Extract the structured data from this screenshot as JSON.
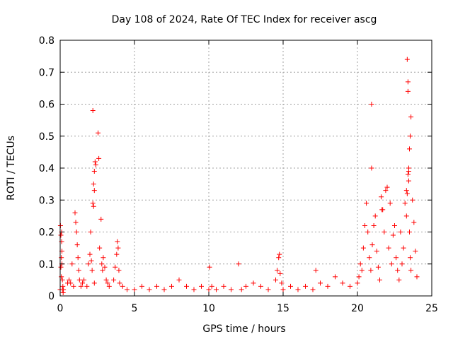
{
  "chart_data": {
    "type": "scatter",
    "title": "Day 108 of 2024, Rate Of TEC Index for receiver ascg",
    "xlabel": "GPS time / hours",
    "ylabel": "ROTI / TECUs",
    "xlim": [
      0,
      25
    ],
    "ylim": [
      0,
      0.8
    ],
    "x_ticks": [
      "0",
      "5",
      "10",
      "15",
      "20",
      "25"
    ],
    "y_ticks": [
      "0",
      "0.1",
      "0.2",
      "0.3",
      "0.4",
      "0.5",
      "0.6",
      "0.7",
      "0.8"
    ],
    "grid": true,
    "marker": "+",
    "color": "#ff0000",
    "series": [
      {
        "x": [
          0.0,
          0.02,
          0.05,
          0.08,
          0.1,
          0.12,
          0.15,
          0.18,
          0.2,
          0.22,
          0.05,
          0.1,
          0.15,
          0.08,
          0.12,
          0.5,
          0.6,
          0.7,
          0.8,
          0.9,
          1.0,
          1.05,
          1.1,
          1.15,
          1.2,
          1.25,
          1.3,
          1.4,
          1.5,
          1.6,
          1.8,
          1.9,
          2.0,
          2.05,
          2.1,
          2.15,
          2.2,
          2.25,
          2.3,
          2.35,
          2.4,
          2.2,
          2.25,
          2.3,
          2.3,
          2.55,
          2.6,
          2.65,
          2.75,
          2.8,
          2.85,
          2.9,
          3.0,
          3.1,
          3.2,
          3.3,
          3.6,
          3.7,
          3.8,
          3.85,
          3.9,
          3.95,
          4.0,
          4.2,
          4.5,
          5.0,
          5.5,
          6.0,
          6.5,
          7.0,
          7.5,
          8.0,
          8.5,
          9.0,
          9.5,
          10.0,
          10.05,
          10.2,
          10.5,
          11.0,
          11.5,
          12.0,
          12.2,
          12.5,
          13.0,
          13.5,
          14.0,
          14.5,
          14.6,
          14.7,
          14.75,
          14.8,
          14.9,
          15.0,
          15.5,
          16.0,
          16.5,
          17.0,
          17.2,
          17.5,
          18.0,
          18.5,
          19.0,
          19.5,
          20.0,
          20.1,
          20.2,
          20.3,
          20.4,
          20.5,
          20.6,
          20.7,
          20.8,
          20.9,
          20.95,
          21.0,
          21.1,
          21.2,
          21.3,
          21.4,
          21.5,
          21.6,
          21.7,
          21.8,
          21.9,
          22.0,
          22.1,
          22.2,
          22.3,
          22.4,
          22.5,
          22.6,
          22.7,
          22.8,
          22.9,
          23.0,
          23.1,
          23.2,
          23.3,
          23.35,
          23.4,
          23.45,
          23.5,
          23.55,
          23.6,
          23.7,
          23.8,
          23.9,
          24.0,
          23.35,
          23.4,
          23.4,
          23.45,
          23.45,
          23.5,
          23.55,
          23.6,
          23.3,
          20.95,
          21.65
        ],
        "y": [
          0.02,
          0.22,
          0.19,
          0.12,
          0.2,
          0.14,
          0.05,
          0.03,
          0.01,
          0.02,
          0.09,
          0.17,
          0.02,
          0.06,
          0.1,
          0.04,
          0.05,
          0.04,
          0.1,
          0.03,
          0.26,
          0.23,
          0.2,
          0.16,
          0.12,
          0.08,
          0.05,
          0.03,
          0.04,
          0.05,
          0.03,
          0.1,
          0.13,
          0.2,
          0.11,
          0.08,
          0.29,
          0.35,
          0.39,
          0.42,
          0.41,
          0.58,
          0.28,
          0.33,
          0.04,
          0.51,
          0.43,
          0.15,
          0.24,
          0.1,
          0.08,
          0.12,
          0.09,
          0.05,
          0.04,
          0.03,
          0.05,
          0.09,
          0.13,
          0.17,
          0.15,
          0.08,
          0.04,
          0.03,
          0.02,
          0.02,
          0.03,
          0.02,
          0.03,
          0.02,
          0.03,
          0.05,
          0.03,
          0.02,
          0.03,
          0.02,
          0.09,
          0.03,
          0.02,
          0.03,
          0.02,
          0.1,
          0.02,
          0.03,
          0.04,
          0.03,
          0.02,
          0.05,
          0.08,
          0.12,
          0.13,
          0.07,
          0.04,
          0.02,
          0.03,
          0.02,
          0.03,
          0.02,
          0.08,
          0.04,
          0.03,
          0.06,
          0.04,
          0.03,
          0.04,
          0.06,
          0.1,
          0.08,
          0.15,
          0.22,
          0.29,
          0.2,
          0.12,
          0.08,
          0.4,
          0.16,
          0.22,
          0.25,
          0.14,
          0.09,
          0.05,
          0.31,
          0.27,
          0.2,
          0.33,
          0.34,
          0.15,
          0.29,
          0.1,
          0.19,
          0.22,
          0.12,
          0.08,
          0.05,
          0.2,
          0.1,
          0.15,
          0.29,
          0.33,
          0.32,
          0.38,
          0.4,
          0.46,
          0.5,
          0.56,
          0.3,
          0.23,
          0.14,
          0.06,
          0.74,
          0.67,
          0.64,
          0.39,
          0.36,
          0.2,
          0.12,
          0.08,
          0.25,
          0.6,
          0.27
        ]
      }
    ]
  }
}
